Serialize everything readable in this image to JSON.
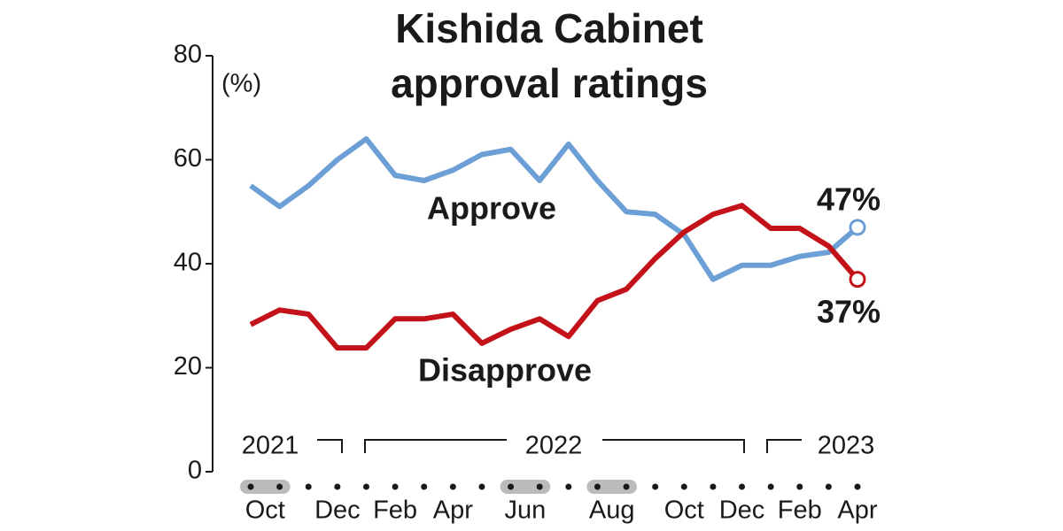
{
  "chart_data": {
    "type": "line",
    "title": [
      "Kishida Cabinet",
      "approval ratings"
    ],
    "unit_label": "(%)",
    "categories": [
      "Oct",
      null,
      null,
      "Dec",
      null,
      "Feb",
      null,
      "Apr",
      null,
      "Jun",
      null,
      null,
      "Aug",
      null,
      null,
      "Oct",
      null,
      "Dec",
      null,
      "Feb",
      null,
      "Apr"
    ],
    "highlight": [
      0,
      9,
      12
    ],
    "years": [
      "2021",
      "2022",
      "2023"
    ],
    "series": [
      {
        "name": "Approve",
        "color": "#6c9fd6",
        "end_label": "47%",
        "values": [
          55,
          51,
          55,
          60,
          64,
          57,
          56,
          58,
          61,
          62,
          56,
          63,
          56,
          50,
          49.5,
          45.6,
          37,
          39.7,
          39.7,
          41.4,
          42.2,
          47
        ]
      },
      {
        "name": "Disapprove",
        "color": "#c4121a",
        "end_label": "37%",
        "values": [
          28.3,
          31.1,
          30.3,
          23.8,
          23.8,
          29.4,
          29.4,
          30.3,
          24.7,
          27.4,
          29.4,
          26,
          32.9,
          35.1,
          41,
          46.1,
          49.5,
          51.2,
          46.8,
          46.8,
          43.4,
          37
        ]
      }
    ],
    "ylim": [
      0,
      80
    ],
    "yticks": [
      0,
      20,
      40,
      60,
      80
    ]
  }
}
